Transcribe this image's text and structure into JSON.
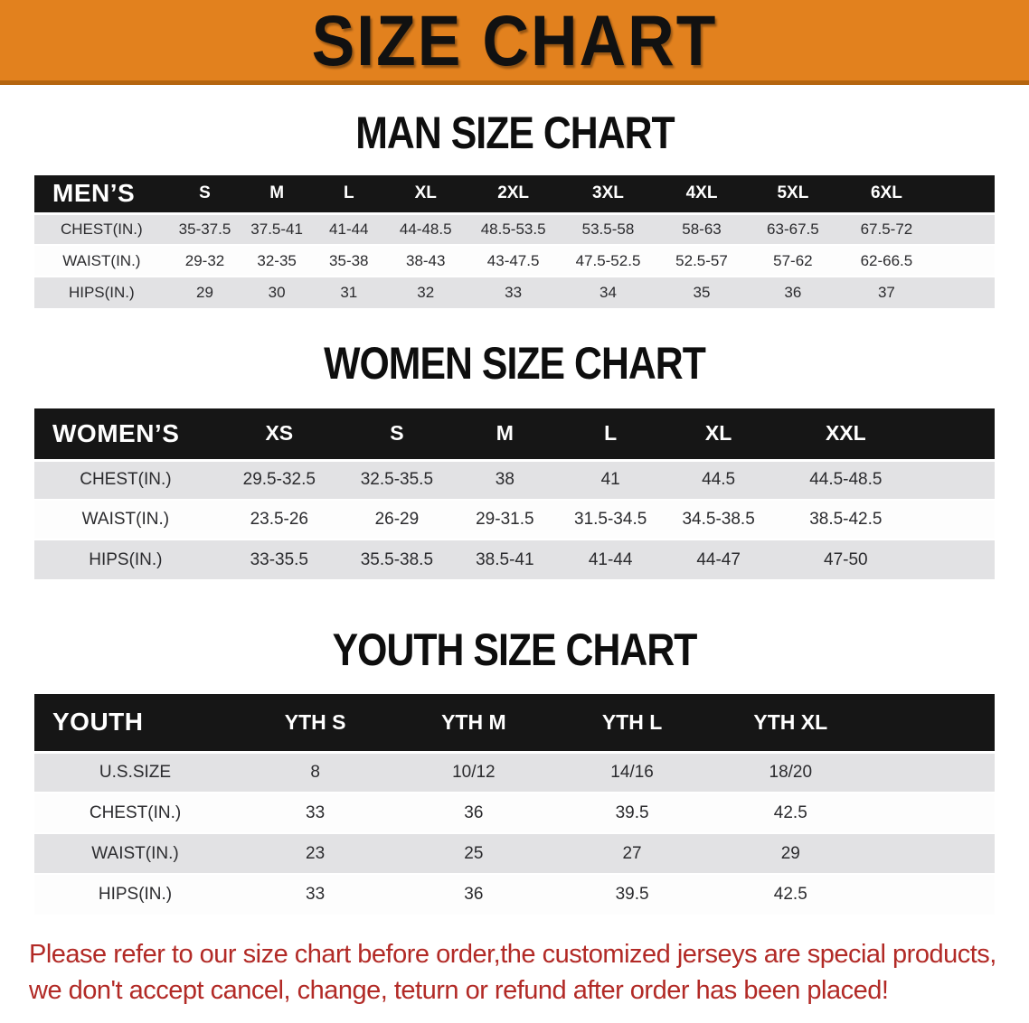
{
  "banner": {
    "title": "SIZE CHART"
  },
  "colors": {
    "banner-orange": "#E2811E",
    "banner-strip": "#B5650F",
    "bar-black": "#161616",
    "row-gray": "#E2E2E4",
    "red": "#B22A26"
  },
  "sections": [
    {
      "heading": "MAN SIZE CHART",
      "table": {
        "header_label": "MEN’S",
        "columns": [
          "S",
          "M",
          "L",
          "XL",
          "2XL",
          "3XL",
          "4XL",
          "5XL",
          "6XL"
        ],
        "rows": [
          {
            "label": "CHEST(IN.)",
            "values": [
              "35-37.5",
              "37.5-41",
              "41-44",
              "44-48.5",
              "48.5-53.5",
              "53.5-58",
              "58-63",
              "63-67.5",
              "67.5-72"
            ]
          },
          {
            "label": "WAIST(IN.)",
            "values": [
              "29-32",
              "32-35",
              "35-38",
              "38-43",
              "43-47.5",
              "47.5-52.5",
              "52.5-57",
              "57-62",
              "62-66.5"
            ]
          },
          {
            "label": "HIPS(IN.)",
            "values": [
              "29",
              "30",
              "31",
              "32",
              "33",
              "34",
              "35",
              "36",
              "37"
            ]
          }
        ]
      }
    },
    {
      "heading": "WOMEN SIZE CHART",
      "table": {
        "header_label": "WOMEN’S",
        "columns": [
          "XS",
          "S",
          "M",
          "L",
          "XL",
          "XXL"
        ],
        "rows": [
          {
            "label": "CHEST(IN.)",
            "values": [
              "29.5-32.5",
              "32.5-35.5",
              "38",
              "41",
              "44.5",
              "44.5-48.5"
            ]
          },
          {
            "label": "WAIST(IN.)",
            "values": [
              "23.5-26",
              "26-29",
              "29-31.5",
              "31.5-34.5",
              "34.5-38.5",
              "38.5-42.5"
            ]
          },
          {
            "label": "HIPS(IN.)",
            "values": [
              "33-35.5",
              "35.5-38.5",
              "38.5-41",
              "41-44",
              "44-47",
              "47-50"
            ]
          }
        ]
      }
    },
    {
      "heading": "YOUTH SIZE CHART",
      "table": {
        "header_label": "YOUTH",
        "columns": [
          "YTH S",
          "YTH M",
          "YTH L",
          "YTH XL"
        ],
        "rows": [
          {
            "label": "U.S.SIZE",
            "values": [
              "8",
              "10/12",
              "14/16",
              "18/20"
            ]
          },
          {
            "label": "CHEST(IN.)",
            "values": [
              "33",
              "36",
              "39.5",
              "42.5"
            ]
          },
          {
            "label": "WAIST(IN.)",
            "values": [
              "23",
              "25",
              "27",
              "29"
            ]
          },
          {
            "label": "HIPS(IN.)",
            "values": [
              "33",
              "36",
              "39.5",
              "42.5"
            ]
          }
        ]
      }
    }
  ],
  "disclaimer": {
    "line1": "Please refer to our size chart before order,the customized jerseys are special products,",
    "line2": "we don't accept cancel, change, teturn or refund after order has been placed!"
  }
}
